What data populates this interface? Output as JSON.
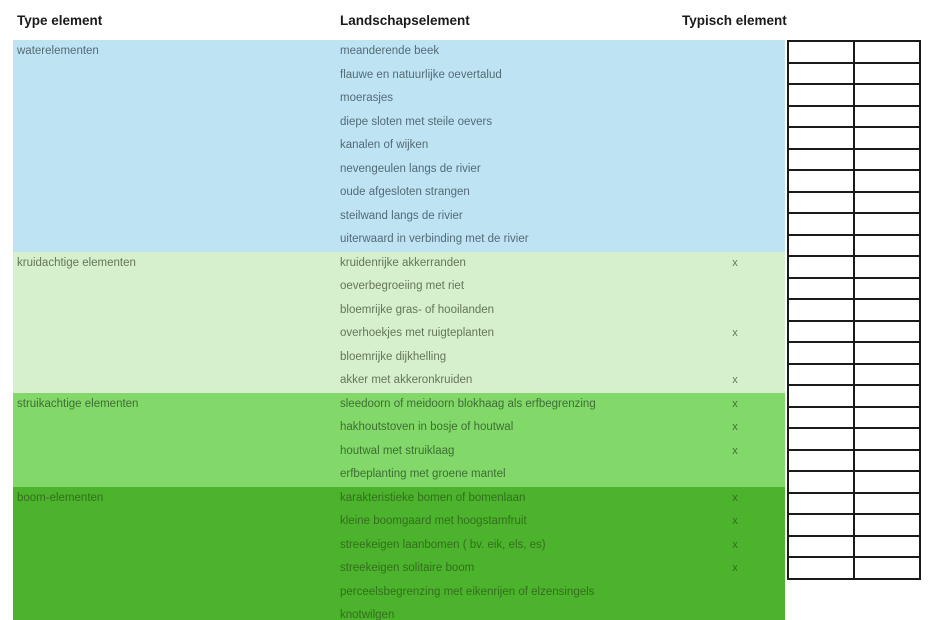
{
  "header": {
    "col_type": "Type element",
    "col_landschap": "Landschapselement",
    "col_typisch": "Typisch element"
  },
  "typical_mark": "x",
  "colors": {
    "header_text": "#1a1a1a",
    "grid_border": "#1a1a1a",
    "grid_cell_bg": "#ffffff",
    "water_bg": "#bee3f2",
    "kruid_bg": "#d6efcd",
    "struik_bg": "#82d969",
    "boom_bg": "#4cb32c"
  },
  "sections": [
    {
      "type": "waterelementen",
      "bg": "#bee3f2",
      "text_color": "#546b77",
      "rows": [
        {
          "landschapselement": "meanderende beek",
          "typisch": false
        },
        {
          "landschapselement": "flauwe en natuurlijke oevertalud",
          "typisch": false
        },
        {
          "landschapselement": "moerasjes",
          "typisch": false
        },
        {
          "landschapselement": "diepe sloten met steile oevers",
          "typisch": false
        },
        {
          "landschapselement": "kanalen of wijken",
          "typisch": false
        },
        {
          "landschapselement": "nevengeulen langs de rivier",
          "typisch": false
        },
        {
          "landschapselement": "oude afgesloten strangen",
          "typisch": false
        },
        {
          "landschapselement": "steilwand langs de rivier",
          "typisch": false
        },
        {
          "landschapselement": "uiterwaard in verbinding met de rivier",
          "typisch": false
        }
      ]
    },
    {
      "type": "kruidachtige elementen",
      "bg": "#d6efcd",
      "text_color": "#667657",
      "rows": [
        {
          "landschapselement": "kruidenrijke akkerranden",
          "typisch": true
        },
        {
          "landschapselement": "oeverbegroeiing met riet",
          "typisch": false
        },
        {
          "landschapselement": "bloemrijke gras- of hooilanden",
          "typisch": false
        },
        {
          "landschapselement": "overhoekjes met ruigteplanten",
          "typisch": true
        },
        {
          "landschapselement": "bloemrijke dijkhelling",
          "typisch": false
        },
        {
          "landschapselement": "akker met akkeronkruiden",
          "typisch": true
        }
      ]
    },
    {
      "type": "struikachtige elementen",
      "bg": "#82d969",
      "text_color": "#3d6e33",
      "rows": [
        {
          "landschapselement": "sleedoorn of meidoorn blokhaag als erfbegrenzing",
          "typisch": true
        },
        {
          "landschapselement": "hakhoutstoven in bosje of houtwal",
          "typisch": true
        },
        {
          "landschapselement": "houtwal met struiklaag",
          "typisch": true
        },
        {
          "landschapselement": "erfbeplanting met groene mantel",
          "typisch": false
        }
      ]
    },
    {
      "type": "boom-elementen",
      "bg": "#4cb32c",
      "text_color": "#346e1e",
      "rows": [
        {
          "landschapselement": "karakteristieke bomen of bomenlaan",
          "typisch": true
        },
        {
          "landschapselement": "kleine boomgaard met hoogstamfruit",
          "typisch": true
        },
        {
          "landschapselement": "streekeigen laanbomen ( bv. eik, els, es)",
          "typisch": true
        },
        {
          "landschapselement": "streekeigen solitaire boom",
          "typisch": true
        },
        {
          "landschapselement": "perceelsbegrenzing met eikenrijen of elzensingels",
          "typisch": false
        },
        {
          "landschapselement": "knotwilgen",
          "typisch": false
        }
      ]
    }
  ],
  "answer_grid": {
    "columns": 2
  }
}
